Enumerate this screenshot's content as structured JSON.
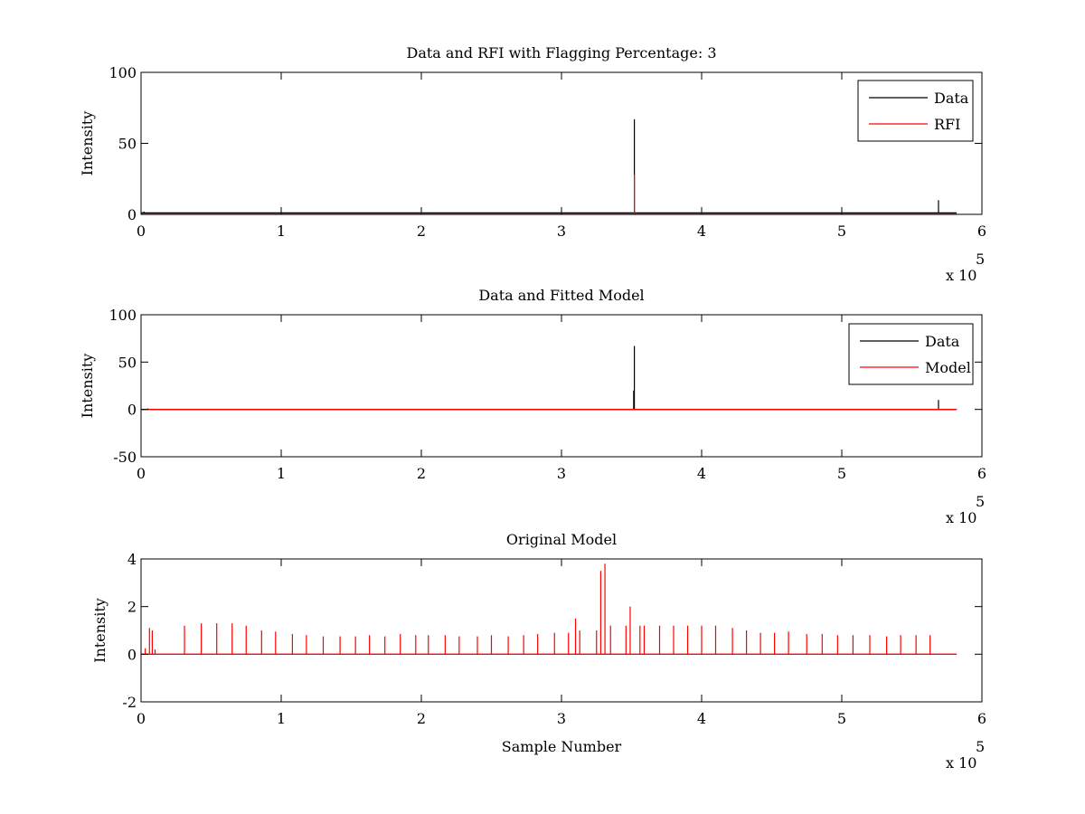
{
  "chart_data": [
    {
      "type": "line",
      "title": "Data and RFI with Flagging Percentage: 3",
      "xlabel": "",
      "ylabel": "Intensity",
      "xlim": [
        0,
        6
      ],
      "ylim": [
        0,
        100
      ],
      "x_multiplier": "x 10",
      "x_multiplier_exp": "5",
      "xticks": [
        "0",
        "1",
        "2",
        "3",
        "4",
        "5",
        "6"
      ],
      "yticks": [
        "0",
        "50",
        "100"
      ],
      "ytick_values": [
        0,
        50,
        100
      ],
      "grid": false,
      "legend": "top-right",
      "series": [
        {
          "name": "Data",
          "color": "#000000",
          "baseline": 1,
          "x_end": 5.82,
          "spikes": [
            [
              0.02,
              2
            ],
            [
              1.0,
              1.5
            ],
            [
              3.52,
              67
            ],
            [
              5.69,
              10
            ]
          ]
        },
        {
          "name": "RFI",
          "color": "#ff0000",
          "baseline": 0,
          "x_end": 5.82,
          "spikes": [
            [
              3.52,
              28
            ]
          ]
        }
      ]
    },
    {
      "type": "line",
      "title": "Data and Fitted Model",
      "xlabel": "",
      "ylabel": "Intensity",
      "xlim": [
        0,
        6
      ],
      "ylim": [
        -50,
        100
      ],
      "x_multiplier": "x 10",
      "x_multiplier_exp": "5",
      "xticks": [
        "0",
        "1",
        "2",
        "3",
        "4",
        "5",
        "6"
      ],
      "yticks": [
        "-50",
        "0",
        "50",
        "100"
      ],
      "ytick_values": [
        -50,
        0,
        50,
        100
      ],
      "grid": false,
      "legend": "top-right",
      "series": [
        {
          "name": "Data",
          "color": "#000000",
          "baseline": 0,
          "x_end": 5.82,
          "spikes": [
            [
              0.05,
              1
            ],
            [
              3.52,
              67
            ],
            [
              3.515,
              20
            ],
            [
              5.69,
              10
            ]
          ]
        },
        {
          "name": "Model",
          "color": "#ff0000",
          "baseline": 0,
          "x_end": 5.82,
          "spikes": []
        }
      ]
    },
    {
      "type": "line",
      "title": "Original Model",
      "xlabel": "Sample Number",
      "ylabel": "Intensity",
      "xlim": [
        0,
        6
      ],
      "ylim": [
        -2,
        4
      ],
      "x_multiplier": "x 10",
      "x_multiplier_exp": "5",
      "xticks": [
        "0",
        "1",
        "2",
        "3",
        "4",
        "5",
        "6"
      ],
      "yticks": [
        "-2",
        "0",
        "2",
        "4"
      ],
      "ytick_values": [
        -2,
        0,
        2,
        4
      ],
      "grid": false,
      "legend": "none",
      "series": [
        {
          "color": "#ff0000",
          "baseline": 0,
          "x_end": 5.82,
          "spikes": [
            [
              0.03,
              0.25
            ],
            [
              0.06,
              1.1
            ],
            [
              0.08,
              1.0
            ],
            [
              0.1,
              0.2
            ],
            [
              0.31,
              1.2
            ],
            [
              0.43,
              1.3
            ],
            [
              0.54,
              1.3
            ],
            [
              0.65,
              1.3
            ],
            [
              0.75,
              1.2
            ],
            [
              0.86,
              1.0
            ],
            [
              0.96,
              0.95
            ],
            [
              1.08,
              0.85
            ],
            [
              1.18,
              0.8
            ],
            [
              1.3,
              0.75
            ],
            [
              1.42,
              0.75
            ],
            [
              1.53,
              0.75
            ],
            [
              1.63,
              0.8
            ],
            [
              1.74,
              0.75
            ],
            [
              1.85,
              0.85
            ],
            [
              1.96,
              0.8
            ],
            [
              2.05,
              0.8
            ],
            [
              2.17,
              0.8
            ],
            [
              2.27,
              0.75
            ],
            [
              2.4,
              0.75
            ],
            [
              2.5,
              0.8
            ],
            [
              2.62,
              0.75
            ],
            [
              2.73,
              0.8
            ],
            [
              2.83,
              0.85
            ],
            [
              2.95,
              0.9
            ],
            [
              3.05,
              0.9
            ],
            [
              3.1,
              1.5
            ],
            [
              3.13,
              1.0
            ],
            [
              3.25,
              1.0
            ],
            [
              3.28,
              3.5
            ],
            [
              3.31,
              3.8
            ],
            [
              3.35,
              1.2
            ],
            [
              3.46,
              1.2
            ],
            [
              3.49,
              2.0
            ],
            [
              3.56,
              1.2
            ],
            [
              3.59,
              1.2
            ],
            [
              3.7,
              1.2
            ],
            [
              3.8,
              1.2
            ],
            [
              3.9,
              1.2
            ],
            [
              4.0,
              1.2
            ],
            [
              4.1,
              1.2
            ],
            [
              4.22,
              1.1
            ],
            [
              4.32,
              1.0
            ],
            [
              4.42,
              0.9
            ],
            [
              4.52,
              0.9
            ],
            [
              4.62,
              0.95
            ],
            [
              4.75,
              0.85
            ],
            [
              4.86,
              0.85
            ],
            [
              4.97,
              0.8
            ],
            [
              5.08,
              0.8
            ],
            [
              5.2,
              0.8
            ],
            [
              5.32,
              0.75
            ],
            [
              5.42,
              0.8
            ],
            [
              5.53,
              0.8
            ],
            [
              5.63,
              0.8
            ]
          ]
        }
      ]
    }
  ]
}
